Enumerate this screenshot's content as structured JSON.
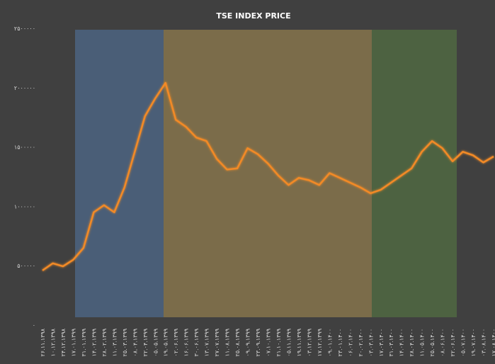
{
  "chart_data": {
    "type": "line",
    "title": "TSE INDEX PRICE",
    "categories": [
      "۲۶.۱۱.۱۳۹۸",
      "۱۰.۱۲.۱۳۹۸",
      "۲۴.۱۲.۱۳۹۸",
      "۱۷.۰۱.۱۳۹۹",
      "۳۱.۰۱.۱۳۹۹",
      "۱۴.۰۲.۱۳۹۹",
      "۲۸.۰۲.۱۳۹۹",
      "۱۱.۰۳.۱۳۹۹",
      "۲۵.۰۳.۱۳۹۹",
      "۰۸.۰۴.۱۳۹۹",
      "۲۲.۰۴.۱۳۹۹",
      "۰۵.۰۵.۱۳۹۹",
      "۱۹.۰۵.۱۳۹۹",
      "۰۲.۰۶.۱۳۹۹",
      "۱۶.۰۶.۱۳۹۹",
      "۳۰.۰۶.۱۳۹۹",
      "۱۳.۰۷.۱۳۹۹",
      "۲۷.۰۷.۱۳۹۹",
      "۱۱.۰۸.۱۳۹۹",
      "۲۵.۰۸.۱۳۹۹",
      "۰۹.۰۹.۱۳۹۹",
      "۲۳.۰۹.۱۳۹۹",
      "۰۷.۱۰.۱۳۹۹",
      "۲۱.۱۰.۱۳۹۹",
      "۰۵.۱۱.۱۳۹۹",
      "۱۹.۱۱.۱۳۹۹",
      "۰۳.۱۲.۱۳۹۹",
      "۱۷.۱۲.۱۳۹۹",
      "۰۹.۰۱.۱۴۰۰",
      "۲۳.۰۱.۱۴۰۰",
      "۰۶.۰۲.۱۴۰۰",
      "۲۰.۰۲.۱۴۰۰",
      "۰۳.۰۳.۱۴۰۰",
      "۱۷.۰۳.۱۴۰۰",
      "۳۱.۰۳.۱۴۰۰",
      "۱۴.۰۴.۱۴۰۰",
      "۲۸.۰۴.۱۴۰۰",
      "۱۱.۰۵.۱۴۰۰",
      "۲۵.۰۵.۱۴۰۰",
      "۰۸.۰۶.۱۴۰۰",
      "۲۲.۰۶.۱۴۰۰",
      "۰۵.۰۷.۱۴۰۰",
      "۱۹.۰۷.۱۴۰۰",
      "۰۳.۰۸.۱۴۰۰",
      "۱۷.۰۸.۱۴۰۰"
    ],
    "values": [
      460000,
      520000,
      495000,
      550000,
      650000,
      950000,
      1010000,
      950000,
      1160000,
      1460000,
      1760000,
      1910000,
      2040000,
      1730000,
      1670000,
      1580000,
      1550000,
      1400000,
      1310000,
      1320000,
      1490000,
      1440000,
      1360000,
      1260000,
      1180000,
      1240000,
      1220000,
      1180000,
      1280000,
      1240000,
      1200000,
      1160000,
      1110000,
      1140000,
      1200000,
      1260000,
      1320000,
      1460000,
      1550000,
      1490000,
      1380000,
      1460000,
      1430000,
      1370000,
      1420000
    ],
    "color": "#f28a26",
    "ylim": [
      0,
      2500000
    ],
    "yticks": [
      {
        "value": 0,
        "label": "۰"
      },
      {
        "value": 500000,
        "label": "۵۰۰۰۰۰"
      },
      {
        "value": 1000000,
        "label": "۱۰۰۰۰۰۰"
      },
      {
        "value": 1500000,
        "label": "۱۵۰۰۰۰۰"
      },
      {
        "value": 2000000,
        "label": "۲۰۰۰۰۰۰"
      },
      {
        "value": 2500000,
        "label": "۲۵۰۰۰۰۰"
      }
    ]
  }
}
